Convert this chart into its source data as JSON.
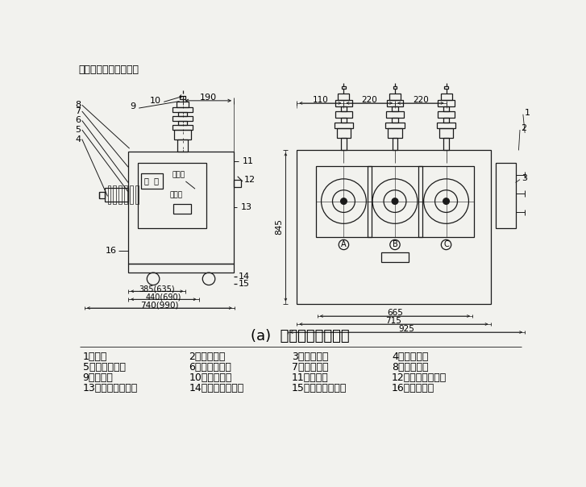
{
  "title_top": "五、外形及安装尺寸：",
  "caption": "(a)  外形图及外形尺寸",
  "bg_color": "#f2f2ee",
  "line_color": "#1a1a1a",
  "legend_items": [
    [
      "1、箱体",
      "2、产品铭牌",
      "3、操动机构",
      "4、接线端子"
    ],
    [
      "5、绝缘导电杆",
      "6、电流互感器",
      "7、分合指针",
      "8、储能指针"
    ],
    [
      "9、绝缘筒",
      "10、接线端子",
      "11、后盖板",
      "12、手动储能手柄"
    ],
    [
      "13、操动机构铭牌",
      "14、手动合闸拉环",
      "15、手动分闸拉环",
      "16、接地螺栓"
    ]
  ],
  "font_size_title": 9,
  "font_size_legend": 9,
  "font_size_caption": 13
}
